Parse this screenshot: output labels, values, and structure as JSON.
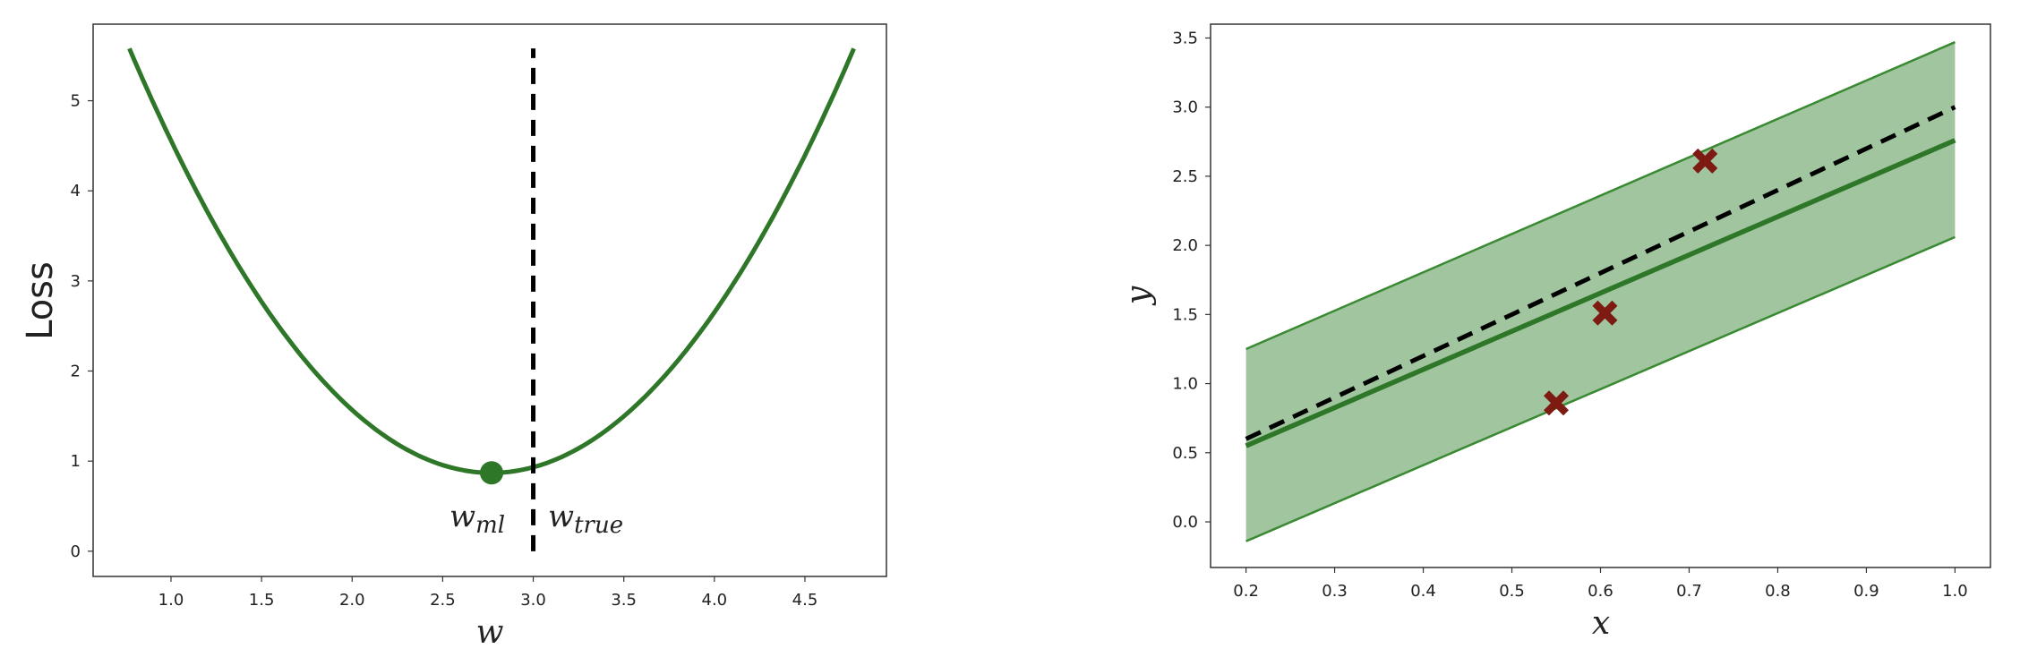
{
  "colors": {
    "curve": "#2e7628",
    "marker": "#2e7628",
    "truth": "#000000",
    "band": "#a1c59f",
    "band_edge": "#3a8a33",
    "points": "#7d1a12"
  },
  "chart_data": [
    {
      "type": "line",
      "xlabel": "w",
      "ylabel": "Loss",
      "xlim": [
        0.57,
        4.95
      ],
      "ylim": [
        -0.28,
        5.85
      ],
      "xticks": [
        "1.0",
        "1.5",
        "2.0",
        "2.5",
        "3.0",
        "3.5",
        "4.0",
        "4.5"
      ],
      "yticks": [
        "0",
        "1",
        "2",
        "3",
        "4",
        "5"
      ],
      "series": [
        {
          "x": [
            0.77,
            1.0,
            1.5,
            2.0,
            2.5,
            2.77,
            3.0,
            3.5,
            4.0,
            4.5,
            4.77
          ],
          "y": [
            5.58,
            4.78,
            3.23,
            2.0,
            1.13,
            0.87,
            0.92,
            1.44,
            2.48,
            4.16,
            5.58
          ]
        }
      ],
      "minimum": {
        "x": 2.77,
        "y": 0.87,
        "label_base": "w",
        "label_sub": "ml"
      },
      "truth_line": {
        "x": 3.0,
        "y_range": [
          0.0,
          5.58
        ],
        "label_base": "w",
        "label_sub": "true"
      }
    },
    {
      "type": "line",
      "xlabel": "x",
      "ylabel": "y",
      "xlim": [
        0.16,
        1.04
      ],
      "ylim": [
        -0.33,
        3.6
      ],
      "xticks": [
        "0.2",
        "0.3",
        "0.4",
        "0.5",
        "0.6",
        "0.7",
        "0.8",
        "0.9",
        "1.0"
      ],
      "yticks": [
        "0.0",
        "0.5",
        "1.0",
        "1.5",
        "2.0",
        "2.5",
        "3.0",
        "3.5"
      ],
      "fit_line": {
        "x": [
          0.2,
          1.0
        ],
        "y": [
          0.55,
          2.76
        ]
      },
      "true_line": {
        "x": [
          0.2,
          1.0
        ],
        "y": [
          0.6,
          3.0
        ]
      },
      "band": {
        "x": [
          0.2,
          1.0
        ],
        "lower": [
          -0.14,
          2.06
        ],
        "upper": [
          1.25,
          3.47
        ]
      },
      "points": {
        "x": [
          0.55,
          0.605,
          0.718
        ],
        "y": [
          0.86,
          1.51,
          2.61
        ]
      }
    }
  ]
}
